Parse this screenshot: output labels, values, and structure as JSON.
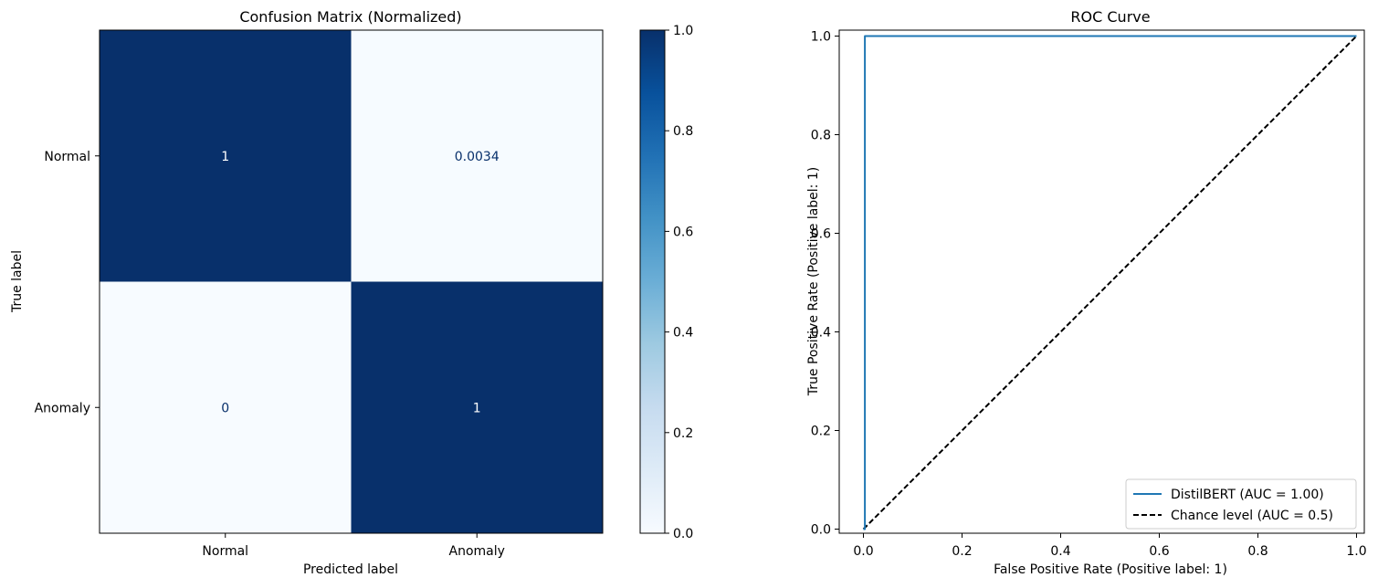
{
  "chart_data": [
    {
      "type": "heatmap",
      "title": "Confusion Matrix (Normalized)",
      "xlabel": "Predicted label",
      "ylabel": "True label",
      "x_categories": [
        "Normal",
        "Anomaly"
      ],
      "y_categories": [
        "Normal",
        "Anomaly"
      ],
      "values": [
        [
          1,
          0.0034
        ],
        [
          0,
          1
        ]
      ],
      "cell_labels": [
        [
          "1",
          "0.0034"
        ],
        [
          "0",
          "1"
        ]
      ],
      "colorscale": "Blues",
      "colorbar": {
        "range": [
          0.0,
          1.0
        ],
        "ticks": [
          0.0,
          0.2,
          0.4,
          0.6,
          0.8,
          1.0
        ],
        "tick_labels": [
          "0.0",
          "0.2",
          "0.4",
          "0.6",
          "0.8",
          "1.0"
        ]
      },
      "grid": false
    },
    {
      "type": "line",
      "title": "ROC Curve",
      "xlabel": "False Positive Rate (Positive label: 1)",
      "ylabel": "True Positive Rate (Positive label: 1)",
      "xlim": [
        0.0,
        1.0
      ],
      "ylim": [
        0.0,
        1.0
      ],
      "xticks": [
        0.0,
        0.2,
        0.4,
        0.6,
        0.8,
        1.0
      ],
      "xtick_labels": [
        "0.0",
        "0.2",
        "0.4",
        "0.6",
        "0.8",
        "1.0"
      ],
      "yticks": [
        0.0,
        0.2,
        0.4,
        0.6,
        0.8,
        1.0
      ],
      "ytick_labels": [
        "0.0",
        "0.2",
        "0.4",
        "0.6",
        "0.8",
        "1.0"
      ],
      "grid": false,
      "legend_position": "lower-right",
      "series": [
        {
          "name": "DistilBERT (AUC = 1.00)",
          "color": "#1f77b4",
          "style": "solid",
          "x": [
            0.0,
            0.0,
            0.003,
            0.003,
            0.003,
            1.0
          ],
          "y": [
            0.0,
            0.0,
            0.0,
            0.64,
            1.0,
            1.0
          ]
        },
        {
          "name": "Chance level (AUC = 0.5)",
          "color": "#000000",
          "style": "dashed",
          "x": [
            0.0,
            1.0
          ],
          "y": [
            0.0,
            1.0
          ]
        }
      ]
    }
  ]
}
